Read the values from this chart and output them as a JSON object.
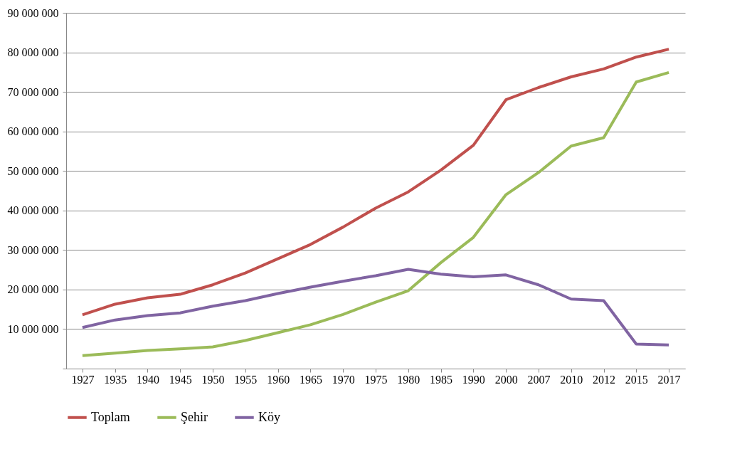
{
  "chart_data": {
    "type": "line",
    "categories": [
      "1927",
      "1935",
      "1940",
      "1945",
      "1950",
      "1955",
      "1960",
      "1965",
      "1970",
      "1975",
      "1980",
      "1985",
      "1990",
      "2000",
      "2007",
      "2010",
      "2012",
      "2015",
      "2017"
    ],
    "series": [
      {
        "name": "Toplam",
        "color": "#c0504d",
        "values": [
          13600000,
          16300000,
          17900000,
          18800000,
          21200000,
          24200000,
          27800000,
          31400000,
          35800000,
          40600000,
          44700000,
          50200000,
          56500000,
          68000000,
          71100000,
          73800000,
          75800000,
          78800000,
          80800000
        ]
      },
      {
        "name": "Şehir",
        "color": "#9bbb59",
        "values": [
          3300000,
          3900000,
          4600000,
          5000000,
          5500000,
          7100000,
          9100000,
          11100000,
          13700000,
          16800000,
          19700000,
          26800000,
          33200000,
          44000000,
          49600000,
          56300000,
          58400000,
          72500000,
          74900000
        ]
      },
      {
        "name": "Köy",
        "color": "#8064a2",
        "values": [
          10400000,
          12300000,
          13400000,
          14100000,
          15800000,
          17200000,
          19000000,
          20600000,
          22100000,
          23500000,
          25100000,
          23900000,
          23200000,
          23700000,
          21200000,
          17600000,
          17200000,
          6200000,
          6000000
        ]
      }
    ],
    "ylim": [
      0,
      90000000
    ],
    "yticks": [
      {
        "value": 0,
        "label": null
      },
      {
        "value": 10000000,
        "label": "10 000 000"
      },
      {
        "value": 20000000,
        "label": "20 000 000"
      },
      {
        "value": 30000000,
        "label": "30 000 000"
      },
      {
        "value": 40000000,
        "label": "40 000 000"
      },
      {
        "value": 50000000,
        "label": "50 000 000"
      },
      {
        "value": 60000000,
        "label": "60 000 000"
      },
      {
        "value": 70000000,
        "label": "70 000 000"
      },
      {
        "value": 80000000,
        "label": "80 000 000"
      },
      {
        "value": 90000000,
        "label": "90 000 000"
      }
    ],
    "grid": "y",
    "legend": "bottom",
    "marker": "none",
    "line_style": "solid"
  }
}
